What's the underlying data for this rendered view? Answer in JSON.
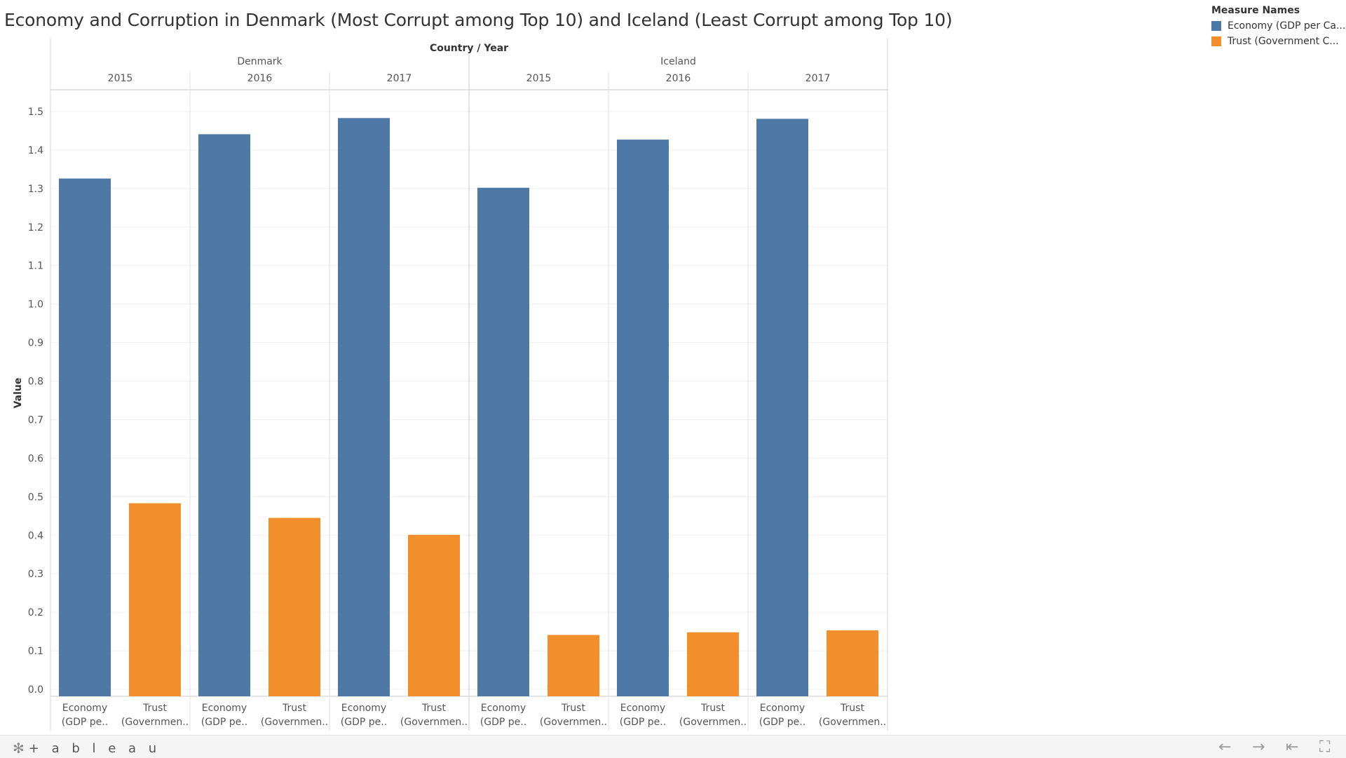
{
  "title": "Economy and Corruption in Denmark (Most Corrupt among Top 10) and Iceland (Least Corrupt among Top 10)",
  "legend": {
    "title": "Measure Names",
    "items": [
      {
        "label": "Economy (GDP per Ca...",
        "color": "#4e79a7"
      },
      {
        "label": "Trust (Government C...",
        "color": "#f28e2b"
      }
    ]
  },
  "footer": {
    "logo_text": "+ a b l e a u",
    "logo_icon": "tableau-asterisk-icon",
    "buttons": [
      {
        "name": "undo-button",
        "icon": "←"
      },
      {
        "name": "redo-button",
        "icon": "→"
      },
      {
        "name": "revert-button",
        "icon": "⇤"
      },
      {
        "name": "fullscreen-button",
        "icon": "⛶"
      }
    ]
  },
  "chart_data": {
    "type": "bar",
    "title": "Economy and Corruption in Denmark (Most Corrupt among Top 10) and Iceland (Least Corrupt among Top 10)",
    "column_header": "Country / Year",
    "ylabel": "Value",
    "ylim": [
      0.0,
      1.5
    ],
    "yticks": [
      "1.5",
      "1.4",
      "1.3",
      "1.2",
      "1.1",
      "1.0",
      "0.9",
      "0.8",
      "0.7",
      "0.6",
      "0.5",
      "0.4",
      "0.3",
      "0.2",
      "0.1",
      "0.0"
    ],
    "grid": true,
    "legend_position": "top-right",
    "countries": [
      {
        "name": "Denmark",
        "years": [
          "2015",
          "2016",
          "2017"
        ]
      },
      {
        "name": "Iceland",
        "years": [
          "2015",
          "2016",
          "2017"
        ]
      }
    ],
    "bar_labels": [
      {
        "line1": "Economy",
        "line2": "(GDP pe.."
      },
      {
        "line1": "Trust",
        "line2": "(Governmen.."
      }
    ],
    "series": [
      {
        "name": "Economy (GDP per Ca...",
        "color": "#4e79a7",
        "values": [
          1.326,
          1.441,
          1.483,
          1.302,
          1.427,
          1.481
        ]
      },
      {
        "name": "Trust (Government C...",
        "color": "#f28e2b",
        "values": [
          0.483,
          0.445,
          0.401,
          0.141,
          0.148,
          0.153
        ]
      }
    ]
  }
}
